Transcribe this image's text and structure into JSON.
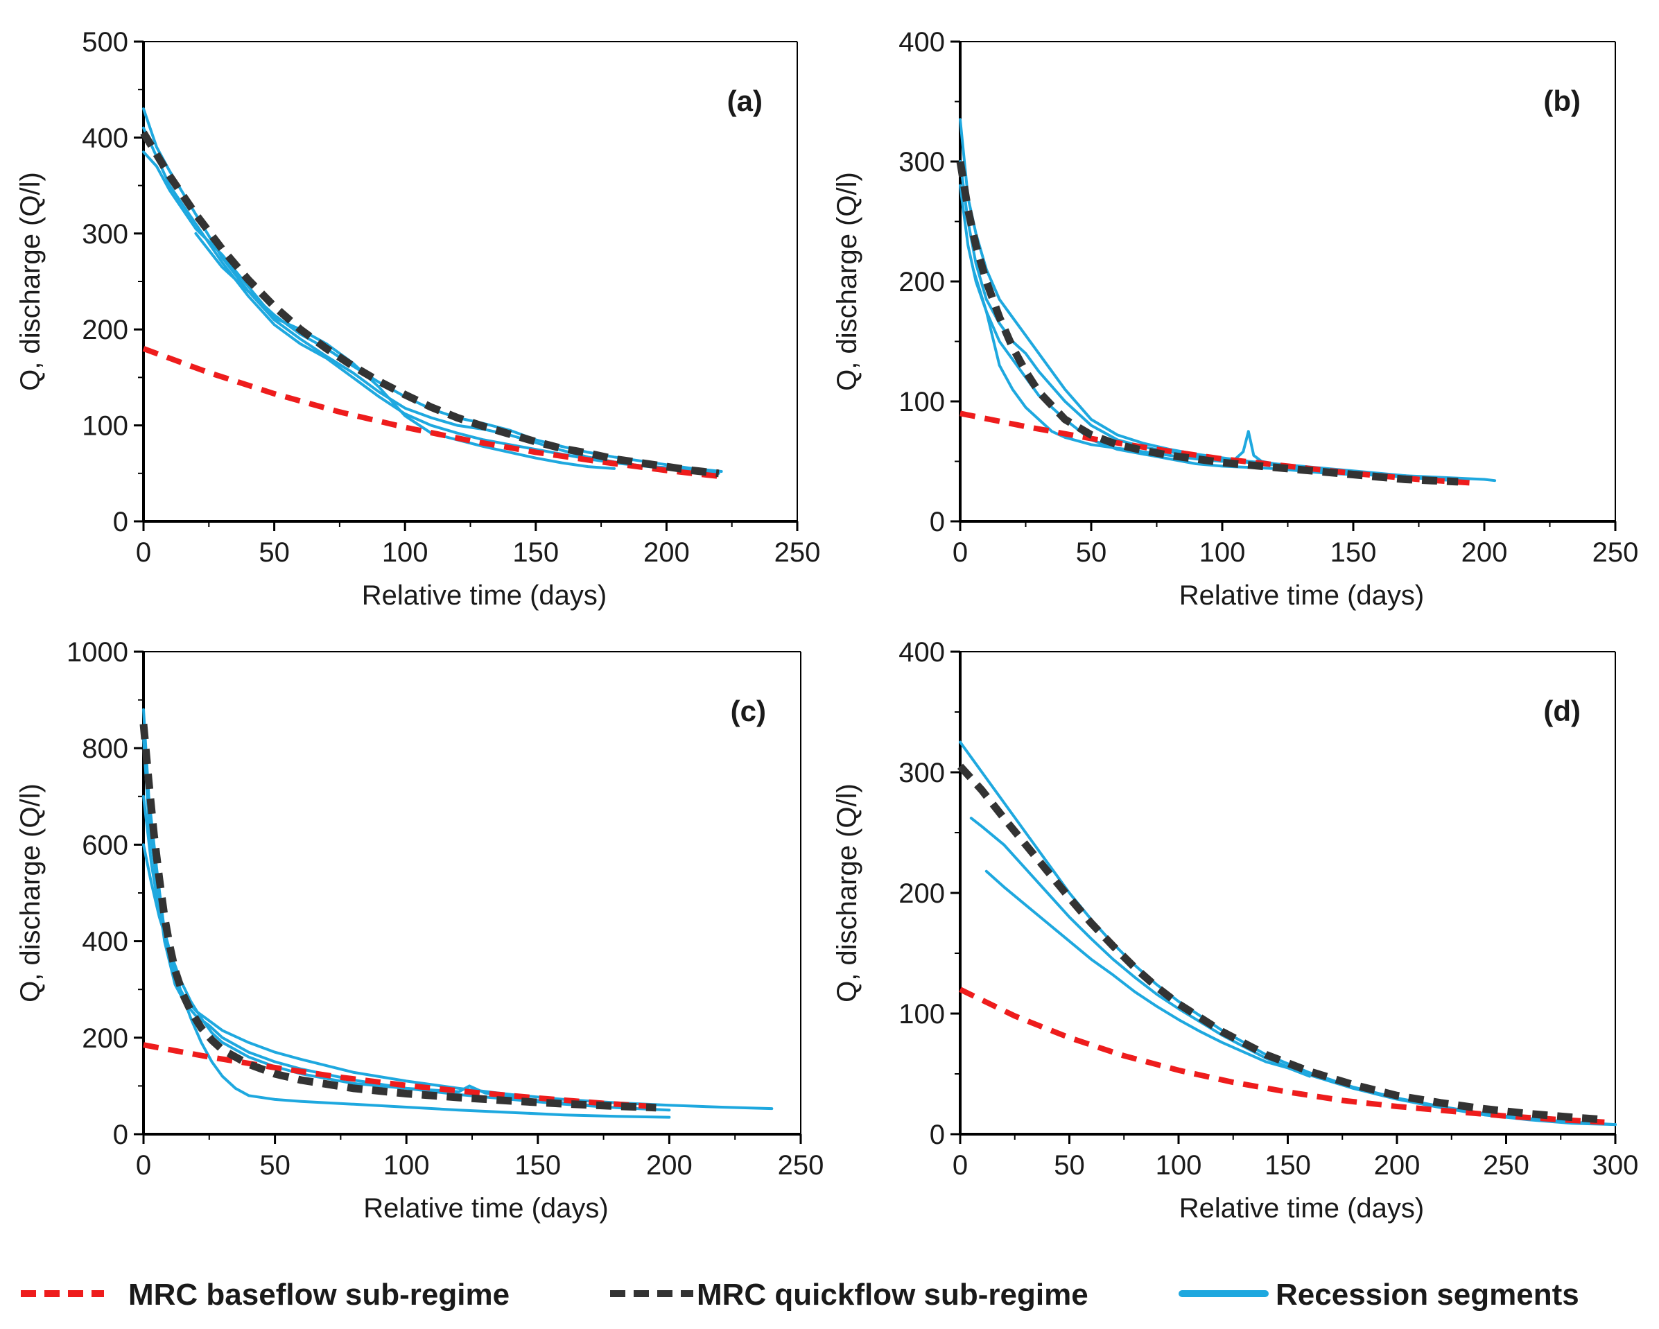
{
  "colors": {
    "baseflow": "#ee1c1c",
    "quickflow": "#333333",
    "recession": "#1ea8df",
    "axis": "#000000"
  },
  "legend": [
    {
      "key": "baseflow",
      "label": "MRC baseflow sub-regime",
      "style": "dashed"
    },
    {
      "key": "quickflow",
      "label": "MRC quickflow sub-regime",
      "style": "dashed"
    },
    {
      "key": "recession",
      "label": "Recession segments",
      "style": "solid"
    }
  ],
  "chart_data": [
    {
      "type": "line",
      "panel_label": "(a)",
      "xlabel": "Relative time (days)",
      "ylabel": "Q, discharge (Q/l)",
      "xlim": [
        0,
        250
      ],
      "ylim": [
        0,
        500
      ],
      "xticks": [
        0,
        50,
        100,
        150,
        200,
        250
      ],
      "yticks": [
        0,
        100,
        200,
        300,
        400,
        500
      ],
      "grid": false,
      "legend_position": "bottom",
      "series": [
        {
          "role": "recession",
          "x": [
            0,
            5,
            10,
            20,
            30,
            40,
            50,
            60,
            70,
            80,
            90,
            100,
            110,
            120,
            130,
            140,
            150,
            160,
            170,
            180,
            190,
            200,
            210,
            221
          ],
          "y": [
            430,
            390,
            365,
            320,
            275,
            240,
            215,
            195,
            180,
            162,
            145,
            130,
            117,
            108,
            102,
            95,
            85,
            78,
            72,
            67,
            63,
            59,
            55,
            52
          ]
        },
        {
          "role": "recession",
          "x": [
            0,
            5,
            10,
            20,
            30,
            40,
            50,
            60,
            70,
            80,
            90,
            100,
            110,
            120,
            130,
            140,
            150,
            160,
            170,
            180,
            190,
            200,
            210,
            220
          ],
          "y": [
            410,
            380,
            350,
            310,
            270,
            235,
            205,
            185,
            170,
            150,
            130,
            112,
            100,
            92,
            85,
            80,
            75,
            70,
            65,
            61,
            58,
            56,
            53,
            50
          ]
        },
        {
          "role": "recession",
          "x": [
            0,
            5,
            10,
            20,
            30,
            40,
            50,
            60,
            70,
            80,
            90,
            100,
            110,
            120,
            130,
            140,
            150,
            160,
            170,
            180
          ],
          "y": [
            385,
            370,
            345,
            305,
            278,
            245,
            212,
            200,
            185,
            165,
            140,
            110,
            92,
            85,
            78,
            72,
            66,
            61,
            57,
            55
          ]
        },
        {
          "role": "recession",
          "x": [
            20,
            30,
            40,
            50,
            60,
            70,
            80,
            90,
            100,
            110,
            120,
            130,
            140,
            150,
            160,
            170,
            180,
            190,
            200,
            210
          ],
          "y": [
            300,
            265,
            240,
            210,
            190,
            172,
            155,
            135,
            118,
            108,
            100,
            96,
            90,
            82,
            74,
            67,
            62,
            58,
            55,
            52
          ]
        },
        {
          "role": "baseflow",
          "x": [
            0,
            25,
            50,
            75,
            100,
            125,
            150,
            175,
            200,
            220
          ],
          "y": [
            180,
            155,
            133,
            114,
            98,
            84,
            72,
            62,
            53,
            47
          ]
        },
        {
          "role": "quickflow",
          "x": [
            0,
            10,
            20,
            30,
            40,
            50,
            60,
            70,
            80,
            90,
            100,
            110,
            120,
            130,
            140,
            150,
            160,
            170,
            180,
            190,
            200,
            210,
            220
          ],
          "y": [
            405,
            360,
            320,
            284,
            252,
            224,
            200,
            180,
            162,
            146,
            132,
            119,
            108,
            99,
            91,
            83,
            76,
            71,
            65,
            61,
            57,
            53,
            50
          ]
        }
      ]
    },
    {
      "type": "line",
      "panel_label": "(b)",
      "xlabel": "Relative time (days)",
      "ylabel": "Q, discharge (Q/l)",
      "xlim": [
        0,
        250
      ],
      "ylim": [
        0,
        400
      ],
      "xticks": [
        0,
        50,
        100,
        150,
        200,
        250
      ],
      "yticks": [
        0,
        100,
        200,
        300,
        400
      ],
      "grid": false,
      "legend_position": "bottom",
      "series": [
        {
          "role": "recession",
          "x": [
            0,
            3,
            6,
            10,
            15,
            20,
            25,
            30,
            40,
            50,
            60,
            70,
            80,
            90,
            100,
            110,
            120,
            130,
            140,
            150,
            160,
            170,
            180,
            190,
            200,
            204
          ],
          "y": [
            335,
            270,
            240,
            210,
            185,
            170,
            155,
            140,
            110,
            85,
            72,
            65,
            60,
            56,
            53,
            50,
            48,
            45,
            43,
            41,
            39,
            38,
            37,
            36,
            35,
            34
          ]
        },
        {
          "role": "recession",
          "x": [
            0,
            3,
            6,
            10,
            15,
            20,
            25,
            30,
            40,
            50,
            60,
            70,
            80,
            90,
            100,
            110,
            120,
            130,
            140,
            150,
            160,
            170,
            180,
            190
          ],
          "y": [
            300,
            250,
            215,
            185,
            165,
            150,
            140,
            125,
            100,
            80,
            68,
            62,
            58,
            54,
            52,
            49,
            47,
            44,
            42,
            40,
            38,
            37,
            35,
            34
          ]
        },
        {
          "role": "recession",
          "x": [
            0,
            3,
            6,
            10,
            15,
            20,
            25,
            30,
            35,
            40,
            50,
            60,
            70,
            80,
            90,
            100,
            105,
            108,
            110,
            112,
            115,
            120,
            130,
            140,
            150,
            160,
            170
          ],
          "y": [
            280,
            230,
            200,
            175,
            130,
            110,
            95,
            85,
            75,
            70,
            64,
            61,
            58,
            55,
            52,
            50,
            52,
            58,
            75,
            55,
            50,
            48,
            46,
            44,
            42,
            40,
            38
          ]
        },
        {
          "role": "recession",
          "x": [
            5,
            10,
            15,
            20,
            25,
            30,
            40,
            50,
            60,
            70,
            80,
            90,
            100,
            110,
            120,
            130,
            140,
            150
          ],
          "y": [
            210,
            175,
            150,
            135,
            120,
            105,
            85,
            68,
            60,
            56,
            52,
            48,
            46,
            45,
            44,
            42,
            40,
            39
          ]
        },
        {
          "role": "baseflow",
          "x": [
            0,
            25,
            50,
            75,
            100,
            125,
            150,
            175,
            195
          ],
          "y": [
            90,
            79,
            69,
            60,
            52,
            46,
            40,
            35,
            32
          ]
        },
        {
          "role": "quickflow",
          "x": [
            0,
            3,
            6,
            10,
            15,
            20,
            25,
            30,
            40,
            50,
            60,
            70,
            80,
            90,
            100,
            110,
            120,
            130,
            140,
            150,
            160,
            170,
            180,
            190
          ],
          "y": [
            300,
            260,
            230,
            200,
            170,
            145,
            125,
            108,
            85,
            72,
            64,
            59,
            55,
            52,
            49,
            47,
            45,
            43,
            41,
            39,
            37,
            35,
            34,
            33
          ]
        }
      ]
    },
    {
      "type": "line",
      "panel_label": "(c)",
      "xlabel": "Relative time (days)",
      "ylabel": "Q, discharge (Q/l)",
      "xlim": [
        0,
        250
      ],
      "ylim": [
        0,
        1000
      ],
      "xticks": [
        0,
        50,
        100,
        150,
        200,
        250
      ],
      "yticks": [
        0,
        200,
        400,
        600,
        800,
        1000
      ],
      "grid": false,
      "legend_position": "bottom",
      "series": [
        {
          "role": "recession",
          "x": [
            0,
            2,
            5,
            8,
            12,
            16,
            20,
            25,
            30,
            40,
            50,
            60,
            80,
            100,
            120,
            140,
            160,
            180,
            200,
            220,
            239
          ],
          "y": [
            880,
            700,
            550,
            420,
            320,
            280,
            255,
            235,
            215,
            190,
            170,
            155,
            128,
            110,
            95,
            82,
            72,
            65,
            60,
            56,
            53
          ]
        },
        {
          "role": "recession",
          "x": [
            0,
            2,
            5,
            8,
            12,
            16,
            20,
            25,
            30,
            40,
            50,
            60,
            80,
            100,
            120,
            140,
            160,
            180,
            200
          ],
          "y": [
            820,
            650,
            520,
            400,
            310,
            270,
            245,
            225,
            200,
            170,
            150,
            135,
            112,
            95,
            82,
            72,
            62,
            55,
            50
          ]
        },
        {
          "role": "recession",
          "x": [
            0,
            3,
            6,
            10,
            14,
            18,
            22,
            26,
            30,
            35,
            40,
            50,
            60,
            80,
            100,
            120,
            140,
            160,
            180,
            200
          ],
          "y": [
            600,
            520,
            450,
            380,
            300,
            240,
            190,
            150,
            120,
            95,
            80,
            72,
            68,
            62,
            56,
            50,
            45,
            40,
            37,
            35
          ]
        },
        {
          "role": "recession",
          "x": [
            0,
            3,
            6,
            10,
            14,
            18,
            22,
            26,
            30,
            40,
            50,
            60,
            80,
            100,
            120,
            124,
            130,
            150,
            170
          ],
          "y": [
            700,
            560,
            460,
            380,
            320,
            275,
            240,
            210,
            190,
            160,
            140,
            125,
            105,
            95,
            88,
            100,
            85,
            70,
            60
          ]
        },
        {
          "role": "baseflow",
          "x": [
            0,
            25,
            50,
            75,
            100,
            125,
            150,
            175,
            195
          ],
          "y": [
            185,
            160,
            138,
            118,
            101,
            87,
            75,
            64,
            57
          ]
        },
        {
          "role": "quickflow",
          "x": [
            0,
            2,
            4,
            6,
            8,
            10,
            12,
            15,
            18,
            22,
            26,
            30,
            40,
            50,
            60,
            80,
            100,
            120,
            140,
            160,
            180,
            195
          ],
          "y": [
            850,
            730,
            620,
            530,
            450,
            390,
            340,
            290,
            255,
            220,
            195,
            175,
            145,
            125,
            112,
            95,
            84,
            76,
            69,
            63,
            58,
            55
          ]
        }
      ]
    },
    {
      "type": "line",
      "panel_label": "(d)",
      "xlabel": "Relative time (days)",
      "ylabel": "Q, discharge (Q/l)",
      "xlim": [
        0,
        300
      ],
      "ylim": [
        0,
        400
      ],
      "xticks": [
        0,
        50,
        100,
        150,
        200,
        250,
        300
      ],
      "yticks": [
        0,
        100,
        200,
        300,
        400
      ],
      "grid": false,
      "legend_position": "bottom",
      "series": [
        {
          "role": "recession",
          "x": [
            0,
            10,
            20,
            30,
            40,
            50,
            60,
            70,
            80,
            90,
            100,
            120,
            140,
            160,
            180,
            200,
            220,
            240,
            260,
            280,
            300
          ],
          "y": [
            325,
            300,
            275,
            250,
            225,
            200,
            178,
            158,
            140,
            124,
            110,
            86,
            66,
            51,
            39,
            30,
            23,
            17,
            13,
            10,
            8
          ]
        },
        {
          "role": "recession",
          "x": [
            5,
            10,
            20,
            30,
            40,
            50,
            60,
            70,
            80,
            90,
            100,
            120,
            140,
            160,
            180,
            200,
            220,
            240,
            260,
            280,
            300
          ],
          "y": [
            262,
            255,
            240,
            220,
            200,
            180,
            162,
            145,
            130,
            116,
            104,
            82,
            63,
            49,
            38,
            29,
            22,
            16,
            12,
            9,
            8
          ]
        },
        {
          "role": "recession",
          "x": [
            12,
            20,
            30,
            40,
            50,
            60,
            70,
            80,
            90,
            100,
            110,
            120,
            130,
            140,
            150,
            160
          ],
          "y": [
            218,
            205,
            190,
            175,
            160,
            145,
            132,
            118,
            106,
            95,
            85,
            76,
            68,
            60,
            55,
            48
          ]
        },
        {
          "role": "baseflow",
          "x": [
            0,
            25,
            50,
            75,
            100,
            125,
            150,
            175,
            200,
            225,
            250,
            275,
            295
          ],
          "y": [
            120,
            98,
            80,
            65,
            53,
            43,
            35,
            28,
            23,
            19,
            15,
            12,
            10
          ]
        },
        {
          "role": "quickflow",
          "x": [
            0,
            10,
            20,
            30,
            40,
            50,
            60,
            70,
            80,
            90,
            100,
            120,
            140,
            160,
            180,
            200,
            220,
            240,
            260,
            280,
            295
          ],
          "y": [
            305,
            285,
            262,
            240,
            218,
            196,
            175,
            156,
            138,
            122,
            108,
            85,
            66,
            52,
            41,
            32,
            26,
            21,
            17,
            14,
            12
          ]
        }
      ]
    }
  ]
}
